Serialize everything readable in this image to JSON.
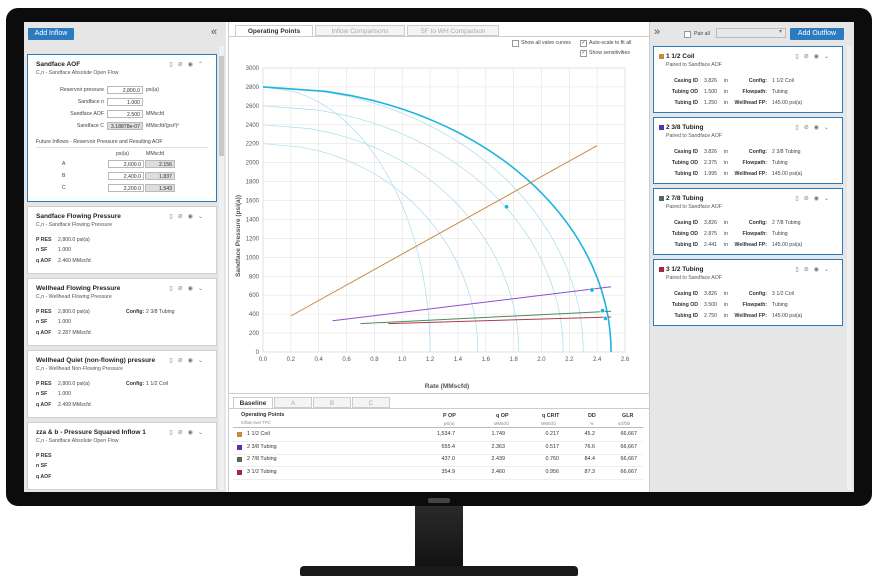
{
  "left": {
    "add_inflow": "Add Inflow",
    "collapse_glyph": "«",
    "aof": {
      "title": "Sandface AOF",
      "subtitle": "C,n - Sandface Absolute Open Flow",
      "rows": [
        {
          "label": "Reservoir pressure",
          "value": "2,800.0",
          "unit": "psi(a)"
        },
        {
          "label": "Sandface n",
          "value": "1.000",
          "unit": ""
        },
        {
          "label": "Sandface AOF",
          "value": "2.500",
          "unit": "MMscfd"
        },
        {
          "label": "Sandface C",
          "value": "3.18878e-07",
          "unit": "MMscfd/(psi²)ⁿ"
        }
      ],
      "future_title": "Future Inflows - Reservoir Pressure and Resulting AOF",
      "future_headers": [
        "psi(a)",
        "MMscfd"
      ],
      "future_rows": [
        {
          "name": "A",
          "psi": "2,600.0",
          "aof": "2.156"
        },
        {
          "name": "B",
          "psi": "2,400.0",
          "aof": "1.837"
        },
        {
          "name": "C",
          "psi": "2,200.0",
          "aof": "1.543"
        }
      ]
    },
    "cards": [
      {
        "title": "Sandface Flowing Pressure",
        "subtitle": "C,n - Sandface Flowing Pressure",
        "pres": "2,800.0 psi(a)",
        "nsf": "1.000",
        "qaof": "2.460 MMscfd",
        "config_label": "",
        "config_value": ""
      },
      {
        "title": "Wellhead Flowing Pressure",
        "subtitle": "C,n - Wellhead Flowing Pressure",
        "pres": "2,800.0 psi(a)",
        "nsf": "1.000",
        "qaof": "2.287 MMscfd",
        "config_label": "Config:",
        "config_value": "2 3/8 Tubing"
      },
      {
        "title": "Wellhead Quiet (non-flowing) pressure",
        "subtitle": "C,n - Wellhead Non-Flowing Pressure",
        "pres": "2,800.0 psi(a)",
        "nsf": "1.000",
        "qaof": "2.499 MMscfd",
        "config_label": "Config:",
        "config_value": "1 1/2 Coil"
      },
      {
        "title": "zza & b - Pressure Squared Inflow 1",
        "subtitle": "C,n - Sandface Absolute Open Flow",
        "pres": "",
        "nsf": "",
        "qaof": "",
        "config_label": "",
        "config_value": ""
      }
    ],
    "param_labels": {
      "pres": "P RES",
      "nsf": "n SF",
      "qaof": "q AOF"
    }
  },
  "tabs": [
    "Operating Points",
    "Inflow Comparisons",
    "SF to WH Comparison"
  ],
  "options": {
    "show_all_valve_curves": "Show all valve curves",
    "auto_scale": "Auto-scale to fit all",
    "show_sensitivities": "Show sensitivities"
  },
  "chart_data": {
    "type": "line",
    "xlabel": "Rate (MMscfd)",
    "ylabel": "Sandface Pressure (psi(a))",
    "xlim": [
      0,
      2.6
    ],
    "ylim": [
      0,
      3000
    ],
    "x_ticks": [
      "0.0",
      "0.2",
      "0.4",
      "0.6",
      "0.8",
      "1.0",
      "1.2",
      "1.4",
      "1.6",
      "1.8",
      "2.0",
      "2.2",
      "2.4",
      "2.6"
    ],
    "y_ticks": [
      "0",
      "200",
      "400",
      "600",
      "800",
      "1000",
      "1200",
      "1400",
      "1600",
      "1800",
      "2000",
      "2200",
      "2400",
      "2600",
      "2800",
      "3000"
    ],
    "grid": true,
    "ipr": {
      "name": "Baseline",
      "pres": 2800,
      "aof": 2.5,
      "color": "#1eb4e0"
    },
    "future_ipr": [
      {
        "name": "A",
        "pres": 2600,
        "aof": 2.156
      },
      {
        "name": "B",
        "pres": 2400,
        "aof": 1.837
      },
      {
        "name": "C",
        "pres": 2200,
        "aof": 1.543
      }
    ],
    "sensitivity_ipr": [
      {
        "pres": 2800,
        "aof": 2.3
      },
      {
        "pres": 2800,
        "aof": 1.2
      }
    ],
    "tpr": [
      {
        "name": "1 1/2 Coil",
        "color": "#c7893e",
        "x": [
          0.2,
          2.4
        ],
        "y": [
          380,
          2180
        ]
      },
      {
        "name": "2 3/8 Tubing",
        "color": "#8c4fcf",
        "x": [
          0.5,
          2.5
        ],
        "y": [
          330,
          690
        ]
      },
      {
        "name": "2 7/8 Tubing",
        "color": "#4f8a5c",
        "x": [
          0.7,
          2.5
        ],
        "y": [
          300,
          430
        ]
      },
      {
        "name": "3 1/2 Tubing",
        "color": "#b03a4e",
        "x": [
          0.9,
          2.5
        ],
        "y": [
          300,
          370
        ]
      }
    ],
    "operating_points": [
      {
        "x": 1.749,
        "y": 1534.7
      },
      {
        "x": 2.363,
        "y": 655.4
      },
      {
        "x": 2.439,
        "y": 437.0
      },
      {
        "x": 2.46,
        "y": 354.9
      }
    ]
  },
  "bottom": {
    "tabs": [
      "Baseline",
      "A",
      "B",
      "C"
    ],
    "headers": [
      {
        "t": "Operating Points",
        "s": "Inflow over TPC"
      },
      {
        "t": "P OP",
        "s": "psi(a)"
      },
      {
        "t": "q OP",
        "s": "MMscfd"
      },
      {
        "t": "q CRIT",
        "s": "MMscfd"
      },
      {
        "t": "DD",
        "s": "%"
      },
      {
        "t": "GLR",
        "s": "scf/bbl"
      }
    ],
    "rows": [
      {
        "name": "1 1/2 Coil",
        "color": "#c7893e",
        "pop": "1,534.7",
        "qop": "1.749",
        "qcrit": "0.217",
        "dd": "45.2",
        "glr": "66,667"
      },
      {
        "name": "2 3/8 Tubing",
        "color": "#5b2fb5",
        "pop": "655.4",
        "qop": "2.363",
        "qcrit": "0.517",
        "dd": "76.6",
        "glr": "66,667"
      },
      {
        "name": "2 7/8 Tubing",
        "color": "#4d6b56",
        "pop": "437.0",
        "qop": "2.439",
        "qcrit": "0.760",
        "dd": "84.4",
        "glr": "66,667"
      },
      {
        "name": "3 1/2 Tubing",
        "color": "#a02a3c",
        "pop": "354.9",
        "qop": "2.460",
        "qcrit": "0.956",
        "dd": "87.3",
        "glr": "66,667"
      }
    ]
  },
  "right": {
    "expand_glyph": "»",
    "pair_all": "Pair all",
    "add_outflow": "Add Outflow",
    "outflows": [
      {
        "name": "1 1/2 Coil",
        "color": "#c7893e",
        "paired": "Paired to Sandface AOF",
        "casing_id": "3.826",
        "tubing_od": "1.500",
        "tubing_id": "1.250",
        "config": "1 1/2 Coil",
        "flowpath": "Tubing",
        "whfp": "145.00 psi(a)"
      },
      {
        "name": "2 3/8 Tubing",
        "color": "#5b2fb5",
        "paired": "Paired to Sandface AOF",
        "casing_id": "3.826",
        "tubing_od": "2.375",
        "tubing_id": "1.995",
        "config": "2 3/8 Tubing",
        "flowpath": "Tubing",
        "whfp": "145.00 psi(a)"
      },
      {
        "name": "2 7/8 Tubing",
        "color": "#4d6b56",
        "paired": "Paired to Sandface AOF",
        "casing_id": "3.826",
        "tubing_od": "2.875",
        "tubing_id": "2.441",
        "config": "2 7/8 Tubing",
        "flowpath": "Tubing",
        "whfp": "145.00 psi(a)"
      },
      {
        "name": "3 1/2 Tubing",
        "color": "#a02a3c",
        "paired": "Paired to Sandface AOF",
        "casing_id": "3.826",
        "tubing_od": "3.500",
        "tubing_id": "2.750",
        "config": "3 1/2 Coil",
        "flowpath": "Tubing",
        "whfp": "145.00 psi(a)"
      }
    ],
    "field_labels": {
      "casing_id": "Casing ID",
      "tubing_od": "Tubing OD",
      "tubing_id": "Tubing ID",
      "config": "Config:",
      "flowpath": "Flowpath:",
      "whfp": "Wellhead FP:",
      "unit": "in"
    }
  }
}
